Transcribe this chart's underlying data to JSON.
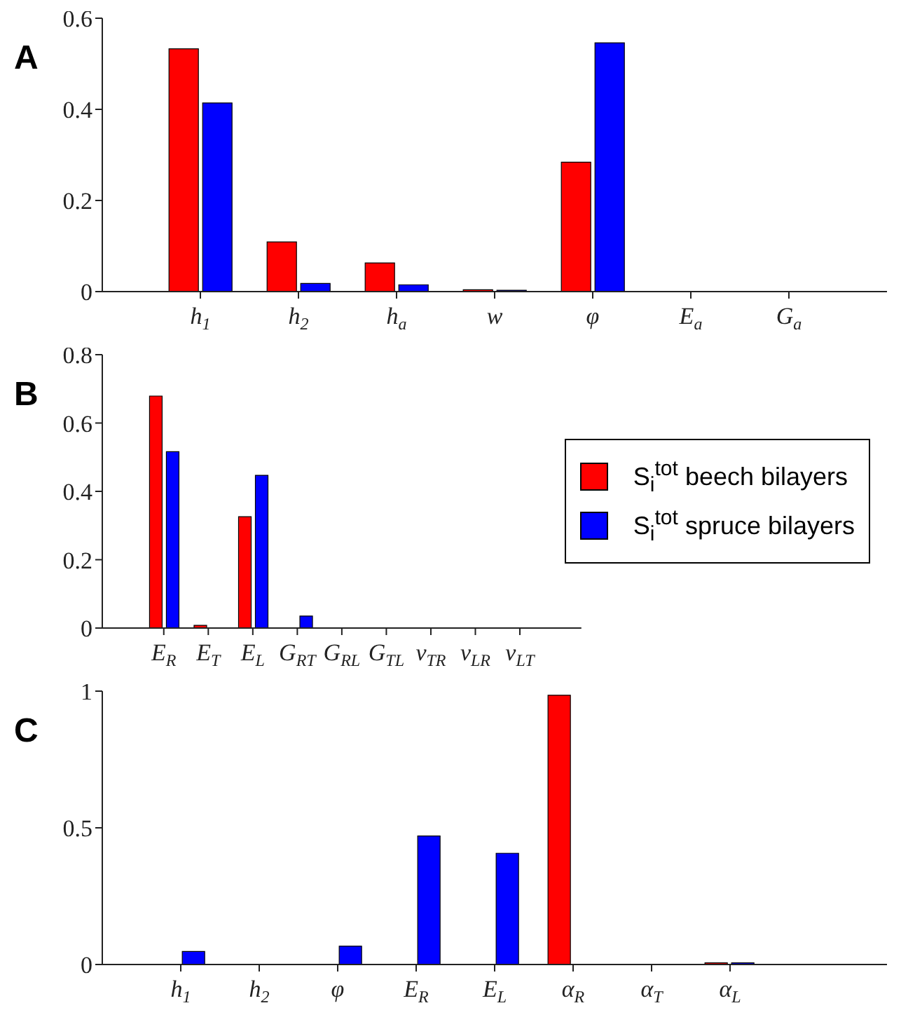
{
  "chart_data": [
    {
      "type": "bar",
      "title": "A",
      "categories": [
        "h$_{1}$",
        "h$_{2}$",
        "h$_{a}$",
        "w",
        "φ",
        "E$_{a}$",
        "G$_{a}$"
      ],
      "series": [
        {
          "color": "#ff0000",
          "values": [
            0.533,
            0.109,
            0.063,
            0.004,
            0.284,
            0,
            0
          ]
        },
        {
          "color": "#0000ff",
          "values": [
            0.414,
            0.018,
            0.015,
            0.003,
            0.546,
            0,
            0
          ]
        }
      ],
      "ylim": [
        0,
        0.6
      ],
      "yticks": [
        0,
        0.2,
        0.4,
        0.6
      ],
      "grid": false,
      "legend": false
    },
    {
      "type": "bar",
      "title": "B",
      "categories": [
        "E$_{R}$",
        "E$_{T}$",
        "E$_{L}$",
        "G$_{RT}$",
        "G$_{RL}$",
        "G$_{TL}$",
        "ν$_{TR}$",
        "ν$_{LR}$",
        "ν$_{LT}$"
      ],
      "series": [
        {
          "name": "S$_{i}$$^{tot}$ beech bilayers",
          "color": "#ff0000",
          "values": [
            0.679,
            0.008,
            0.326,
            0,
            0,
            0,
            0,
            0,
            0
          ]
        },
        {
          "name": "S$_{i}$$^{tot}$ spruce bilayers",
          "color": "#0000ff",
          "values": [
            0.516,
            0,
            0.447,
            0.035,
            0,
            0,
            0,
            0,
            0
          ]
        }
      ],
      "ylim": [
        0,
        0.8
      ],
      "yticks": [
        0,
        0.2,
        0.4,
        0.6,
        0.8
      ],
      "grid": false,
      "legend": "right"
    },
    {
      "type": "bar",
      "title": "C",
      "categories": [
        "h$_{1}$",
        "h$_{2}$",
        "φ",
        "E$_{R}$",
        "E$_{L}$",
        "α$_{R}$",
        "α$_{T}$",
        "α$_{L}$"
      ],
      "series": [
        {
          "color": "#ff0000",
          "values": [
            0,
            0,
            0,
            0,
            0,
            0.985,
            0,
            0.006
          ]
        },
        {
          "color": "#0000ff",
          "values": [
            0.048,
            0,
            0.067,
            0.47,
            0.407,
            0,
            0,
            0.006
          ]
        }
      ],
      "ylim": [
        0,
        1
      ],
      "yticks": [
        0,
        0.5,
        1
      ],
      "grid": false,
      "legend": false
    }
  ]
}
